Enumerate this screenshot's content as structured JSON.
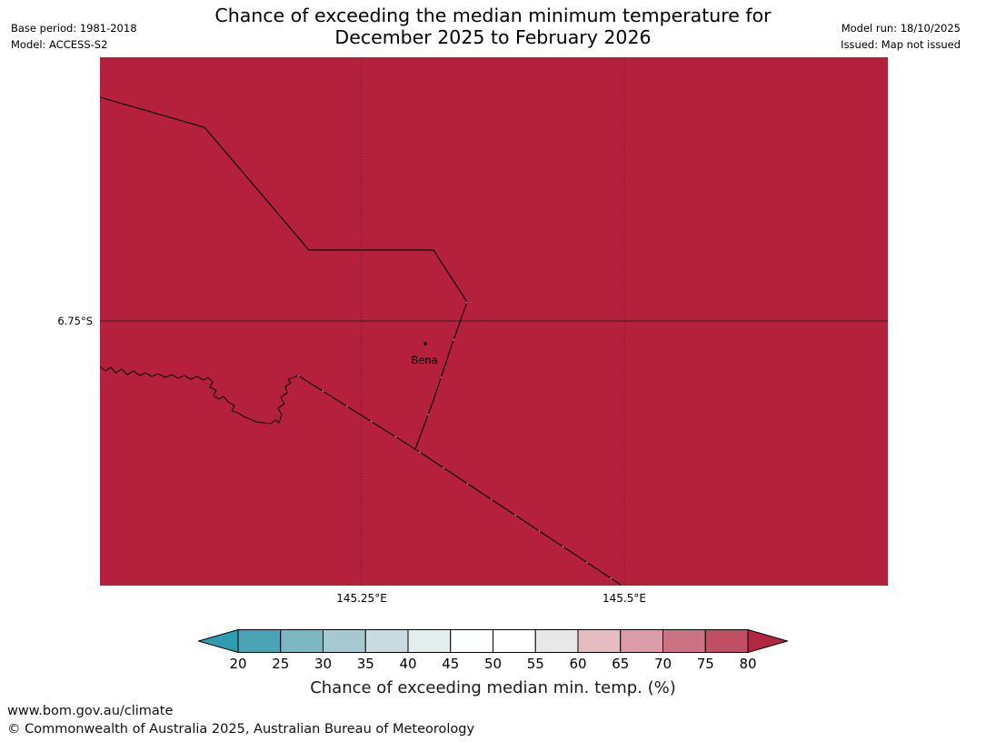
{
  "header": {
    "base_period": "Base period: 1981-2018",
    "model": "Model: ACCESS-S2",
    "title_line1": "Chance of exceeding the median minimum temperature for",
    "title_line2": "December 2025 to February 2026",
    "model_run": "Model run: 18/10/2025",
    "issued": "Issued: Map not issued"
  },
  "map": {
    "fill_color": "#b5203c",
    "lat_gridline_label": "6.75°S",
    "lon_gridline_labels": [
      "145.25°E",
      "145.5°E"
    ],
    "place": {
      "name": "Bena"
    }
  },
  "colorbar": {
    "label": "Chance of exceeding median min. temp. (%)",
    "ticks": [
      "20",
      "25",
      "30",
      "35",
      "40",
      "45",
      "50",
      "55",
      "60",
      "65",
      "70",
      "75",
      "80"
    ],
    "left_arrow_color": "#2e9daf",
    "right_arrow_color": "#b22742",
    "segment_colors": [
      "#4ba4b4",
      "#7db8c2",
      "#a6c9d1",
      "#c9dbde",
      "#e4edee",
      "#fdfefe",
      "#ffffff",
      "#e8e8e8",
      "#e6bcc3",
      "#d99ca8",
      "#cb7384",
      "#c04f63"
    ]
  },
  "footer": {
    "url": "www.bom.gov.au/climate",
    "copyright": "© Commonwealth of Australia 2025, Australian Bureau of Meteorology"
  },
  "chart_data": {
    "type": "heatmap",
    "title": "Chance of exceeding the median minimum temperature for December 2025 to February 2026",
    "colorbar_label": "Chance of exceeding median min. temp. (%)",
    "colorbar_ticks": [
      20,
      25,
      30,
      35,
      40,
      45,
      50,
      55,
      60,
      65,
      70,
      75,
      80
    ],
    "map_extent_labels": {
      "lat": [
        "6.75°S"
      ],
      "lon": [
        "145.25°E",
        "145.5°E"
      ]
    },
    "visible_region_value_bin": ">80",
    "labeled_places": [
      {
        "name": "Bena",
        "lat_label_row": "just below 6.75°S line",
        "lon_position": "between 145.25°E and 145.5°E"
      }
    ]
  }
}
